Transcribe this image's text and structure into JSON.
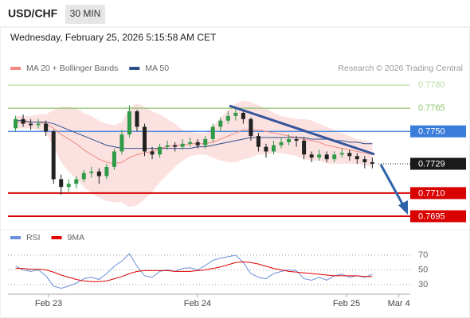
{
  "chart_data": {
    "type": "candlestick",
    "title": "USD/CHF",
    "timeframe": "30 MIN",
    "subtitle": "Wednesday, February 25, 2026 5:15:58 AM CET",
    "attribution": "Research © 2026 Trading Central",
    "xlim": [
      -1,
      52
    ],
    "xticks": [
      {
        "value": 4.35,
        "label": "Feb 23"
      },
      {
        "value": 23.97,
        "label": "Feb 24"
      },
      {
        "value": 43.6,
        "label": "Feb 25"
      },
      {
        "value": 50.5,
        "label": "Mar 4"
      }
    ],
    "ylim": [
      0.769,
      0.7786
    ],
    "up_color": "#2f9a48",
    "down_color": "#222222",
    "open": [
      0.7752,
      0.7758,
      0.7755,
      0.7754,
      0.7755,
      0.775,
      0.7719,
      0.7714,
      0.7716,
      0.7719,
      0.7723,
      0.7724,
      0.7721,
      0.7727,
      0.7737,
      0.7748,
      0.7763,
      0.7753,
      0.7737,
      0.7735,
      0.774,
      0.7741,
      0.774,
      0.7742,
      0.7743,
      0.7741,
      0.7745,
      0.7753,
      0.7757,
      0.776,
      0.7762,
      0.7758,
      0.7747,
      0.774,
      0.7737,
      0.7741,
      0.7743,
      0.7745,
      0.7744,
      0.7735,
      0.7733,
      0.7735,
      0.7732,
      0.7735,
      0.7736,
      0.7734,
      0.7732,
      0.773
    ],
    "high": [
      0.776,
      0.7761,
      0.7758,
      0.7758,
      0.7757,
      0.7751,
      0.7722,
      0.7719,
      0.7721,
      0.7725,
      0.7727,
      0.7726,
      0.7729,
      0.7739,
      0.7751,
      0.7767,
      0.7764,
      0.7755,
      0.774,
      0.7742,
      0.7744,
      0.7743,
      0.7745,
      0.7746,
      0.7745,
      0.7747,
      0.7755,
      0.7759,
      0.7763,
      0.7766,
      0.7764,
      0.7759,
      0.7749,
      0.7742,
      0.7744,
      0.7746,
      0.7748,
      0.7747,
      0.7746,
      0.7737,
      0.7738,
      0.7737,
      0.7737,
      0.7739,
      0.7738,
      0.7736,
      0.7734,
      0.7733
    ],
    "low": [
      0.775,
      0.7753,
      0.7751,
      0.7752,
      0.7747,
      0.7716,
      0.7709,
      0.7711,
      0.7713,
      0.7717,
      0.772,
      0.7716,
      0.7719,
      0.7725,
      0.7735,
      0.7746,
      0.775,
      0.7734,
      0.7732,
      0.7733,
      0.7738,
      0.7737,
      0.7738,
      0.774,
      0.7739,
      0.7739,
      0.7743,
      0.775,
      0.7755,
      0.7757,
      0.7755,
      0.7744,
      0.7737,
      0.7733,
      0.7735,
      0.7739,
      0.7741,
      0.774,
      0.7732,
      0.773,
      0.7731,
      0.773,
      0.773,
      0.7733,
      0.7731,
      0.7729,
      0.7726,
      0.7726
    ],
    "close": [
      0.7758,
      0.7755,
      0.7754,
      0.7755,
      0.775,
      0.7719,
      0.7714,
      0.7716,
      0.7719,
      0.7723,
      0.7724,
      0.7721,
      0.7727,
      0.7737,
      0.7748,
      0.7763,
      0.7753,
      0.7737,
      0.7735,
      0.774,
      0.7741,
      0.774,
      0.7742,
      0.7743,
      0.7741,
      0.7745,
      0.7753,
      0.7757,
      0.776,
      0.7762,
      0.7758,
      0.7747,
      0.774,
      0.7737,
      0.7741,
      0.7743,
      0.7745,
      0.7744,
      0.7735,
      0.7733,
      0.7735,
      0.7732,
      0.7735,
      0.7736,
      0.7734,
      0.7732,
      0.773,
      0.7729
    ],
    "indicators": [
      {
        "name": "MA 20 + Bollinger Bands",
        "color": "#f08a80",
        "band_color": "#fbdada",
        "values": [
          0.7756,
          0.7756,
          0.7756,
          0.7756,
          0.7755,
          0.7752,
          0.7748,
          0.7745,
          0.7742,
          0.7738,
          0.7735,
          0.7732,
          0.773,
          0.7729,
          0.773,
          0.7733,
          0.7735,
          0.7736,
          0.7737,
          0.7739,
          0.774,
          0.7741,
          0.7741,
          0.7742,
          0.7742,
          0.7742,
          0.7743,
          0.7745,
          0.7747,
          0.7749,
          0.7751,
          0.7751,
          0.7751,
          0.775,
          0.7749,
          0.7748,
          0.7747,
          0.7746,
          0.7745,
          0.7744,
          0.7743,
          0.7741,
          0.774,
          0.7739,
          0.7738,
          0.7737,
          0.7736,
          0.7735
        ],
        "upper": [
          0.776,
          0.776,
          0.776,
          0.7761,
          0.7761,
          0.7764,
          0.7766,
          0.7766,
          0.7765,
          0.7762,
          0.776,
          0.7757,
          0.7755,
          0.7754,
          0.7756,
          0.7765,
          0.7768,
          0.7766,
          0.7763,
          0.7761,
          0.7758,
          0.7755,
          0.7751,
          0.775,
          0.7749,
          0.7749,
          0.7753,
          0.7759,
          0.7764,
          0.7768,
          0.777,
          0.7769,
          0.7767,
          0.7765,
          0.7762,
          0.776,
          0.7759,
          0.7758,
          0.7758,
          0.7757,
          0.7755,
          0.7753,
          0.7751,
          0.7749,
          0.7747,
          0.7745,
          0.7744,
          0.7743
        ],
        "lower": [
          0.7752,
          0.7752,
          0.7752,
          0.7751,
          0.7749,
          0.774,
          0.773,
          0.7724,
          0.7719,
          0.7714,
          0.771,
          0.7707,
          0.7705,
          0.7704,
          0.7704,
          0.7701,
          0.7702,
          0.7706,
          0.7711,
          0.7717,
          0.7722,
          0.7727,
          0.7731,
          0.7734,
          0.7735,
          0.7735,
          0.7733,
          0.7731,
          0.773,
          0.773,
          0.7732,
          0.7733,
          0.7735,
          0.7735,
          0.7736,
          0.7736,
          0.7735,
          0.7734,
          0.7732,
          0.7731,
          0.7731,
          0.7729,
          0.7729,
          0.7729,
          0.7729,
          0.7729,
          0.7728,
          0.7727
        ]
      },
      {
        "name": "MA 50",
        "color": "#2e4f8c",
        "values": [
          0.7757,
          0.7757,
          0.7756,
          0.7756,
          0.7756,
          0.7755,
          0.7753,
          0.7751,
          0.7749,
          0.7747,
          0.7745,
          0.7743,
          0.7741,
          0.774,
          0.7739,
          0.7739,
          0.7739,
          0.7739,
          0.7739,
          0.7739,
          0.7739,
          0.7739,
          0.7739,
          0.7739,
          0.774,
          0.774,
          0.7741,
          0.7742,
          0.7743,
          0.7744,
          0.7745,
          0.7746,
          0.7746,
          0.7746,
          0.7746,
          0.7746,
          0.7746,
          0.7746,
          0.7746,
          0.7745,
          0.7745,
          0.7745,
          0.7744,
          0.7744,
          0.7743,
          0.7743,
          0.7742,
          0.7742
        ]
      }
    ],
    "levels": [
      {
        "value": 0.778,
        "label": "0.7780",
        "color": "#b9dca0",
        "style": "text"
      },
      {
        "value": 0.7765,
        "label": "0.7765",
        "color": "#8cc46a",
        "style": "text"
      },
      {
        "value": 0.775,
        "label": "0.7750",
        "color": "#3b7ddb",
        "style": "filled"
      },
      {
        "value": 0.7729,
        "label": "0.7729",
        "color": "#1a1a1a",
        "style": "current"
      },
      {
        "value": 0.771,
        "label": "0.7710",
        "color": "#d90000",
        "style": "filled"
      },
      {
        "value": 0.7695,
        "label": "0.7695",
        "color": "#d90000",
        "style": "filled"
      }
    ],
    "rsi": {
      "ylim": [
        20,
        80
      ],
      "yticks": [
        30,
        50,
        70
      ],
      "series": [
        {
          "name": "RSI",
          "color": "#6b8fd9",
          "values": [
            55,
            50,
            48,
            50,
            42,
            28,
            25,
            28,
            32,
            38,
            40,
            37,
            45,
            55,
            62,
            72,
            55,
            42,
            40,
            48,
            50,
            48,
            52,
            53,
            50,
            56,
            63,
            66,
            68,
            70,
            60,
            45,
            40,
            38,
            45,
            48,
            50,
            49,
            38,
            36,
            40,
            36,
            42,
            44,
            40,
            42,
            40,
            44
          ]
        },
        {
          "name": "9MA",
          "color": "#e00000",
          "values": [
            52,
            52,
            51,
            51,
            50,
            47,
            43,
            40,
            37,
            35,
            34,
            34,
            35,
            38,
            41,
            45,
            48,
            49,
            49,
            49,
            49,
            48,
            48,
            48,
            49,
            50,
            52,
            54,
            57,
            60,
            61,
            60,
            58,
            55,
            52,
            50,
            48,
            47,
            46,
            45,
            44,
            43,
            42,
            42,
            42,
            42,
            41,
            41
          ]
        }
      ]
    }
  }
}
